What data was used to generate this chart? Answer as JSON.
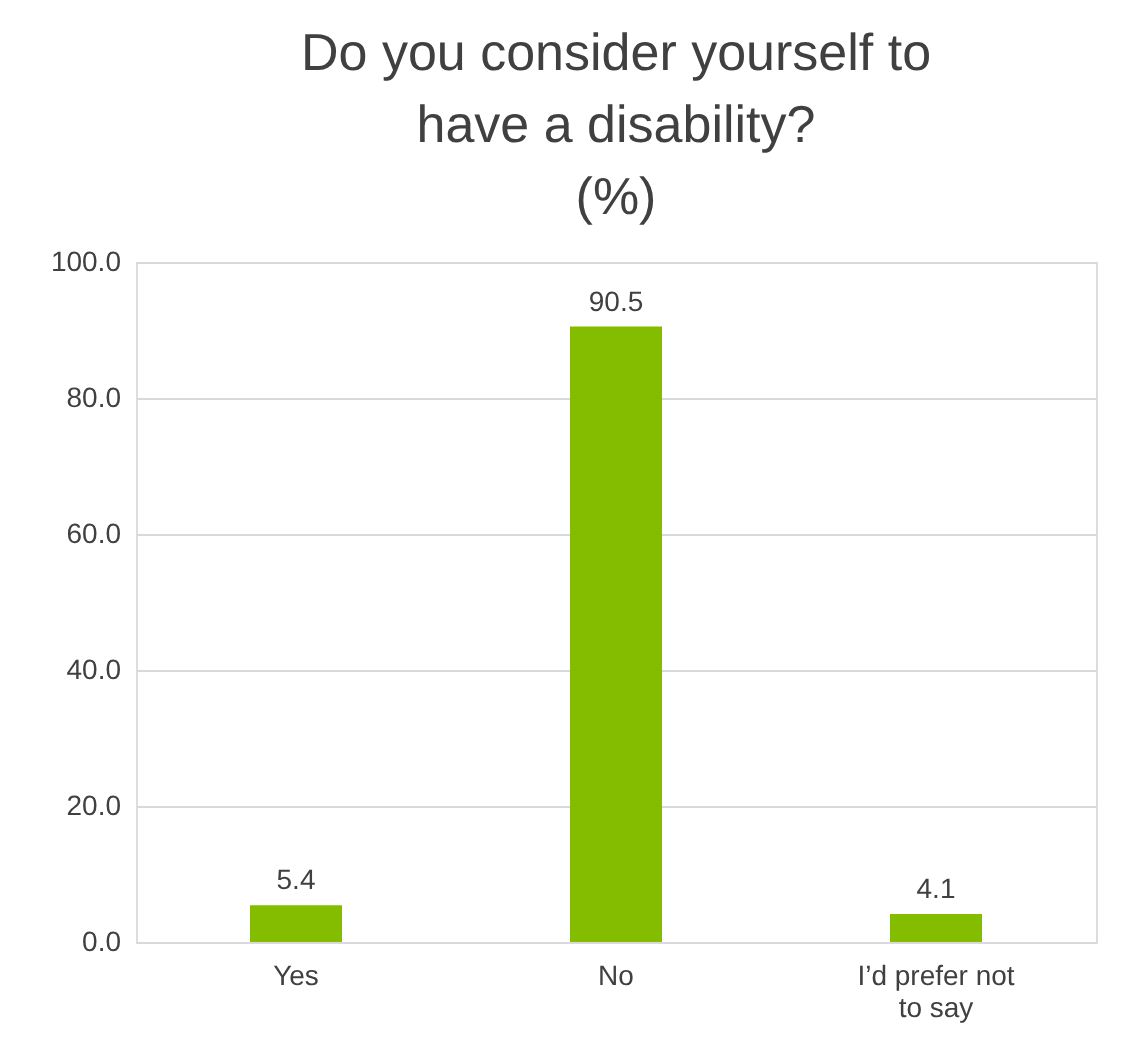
{
  "chart_data": {
    "type": "bar",
    "title": "Do you consider yourself to\nhave a disability?\n(%)",
    "categories": [
      "Yes",
      "No",
      "I’d prefer not to say"
    ],
    "values": [
      5.4,
      90.5,
      4.1
    ],
    "color": "#84bc00",
    "ylim": [
      0,
      100
    ],
    "yticks": [
      {
        "value": 0,
        "label": "0.0"
      },
      {
        "value": 20,
        "label": "20.0"
      },
      {
        "value": 40,
        "label": "40.0"
      },
      {
        "value": 60,
        "label": "60.0"
      },
      {
        "value": 80,
        "label": "80.0"
      },
      {
        "value": 100,
        "label": "100.0"
      }
    ],
    "grid": "y",
    "data_labels": true
  }
}
